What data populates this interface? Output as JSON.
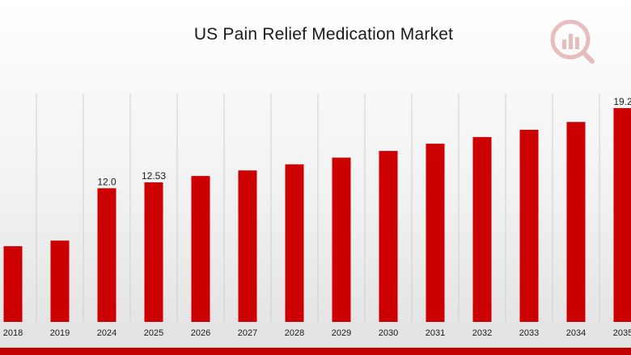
{
  "colors": {
    "bar": "#cc0000",
    "band": "#c00000",
    "grid": "#cfcfcf",
    "text": "#1a1a1a"
  },
  "logo": {
    "icon": "market-research-logo-icon"
  },
  "chart_data": {
    "type": "bar",
    "title": "US Pain Relief Medication Market",
    "xlabel": "",
    "ylabel": "",
    "ylim": [
      0,
      20.5
    ],
    "grid": "vertical",
    "legend": "none",
    "categories": [
      "2018",
      "2019",
      "2024",
      "2025",
      "2026",
      "2027",
      "2028",
      "2029",
      "2030",
      "2031",
      "2032",
      "2033",
      "2034",
      "2035"
    ],
    "values": [
      6.8,
      7.3,
      12.0,
      12.53,
      13.1,
      13.6,
      14.15,
      14.75,
      15.35,
      16.0,
      16.6,
      17.25,
      17.95,
      19.2
    ],
    "data_labels": [
      "",
      "",
      "12.0",
      "12.53",
      "",
      "",
      "",
      "",
      "",
      "",
      "",
      "",
      "",
      "19.2"
    ]
  }
}
